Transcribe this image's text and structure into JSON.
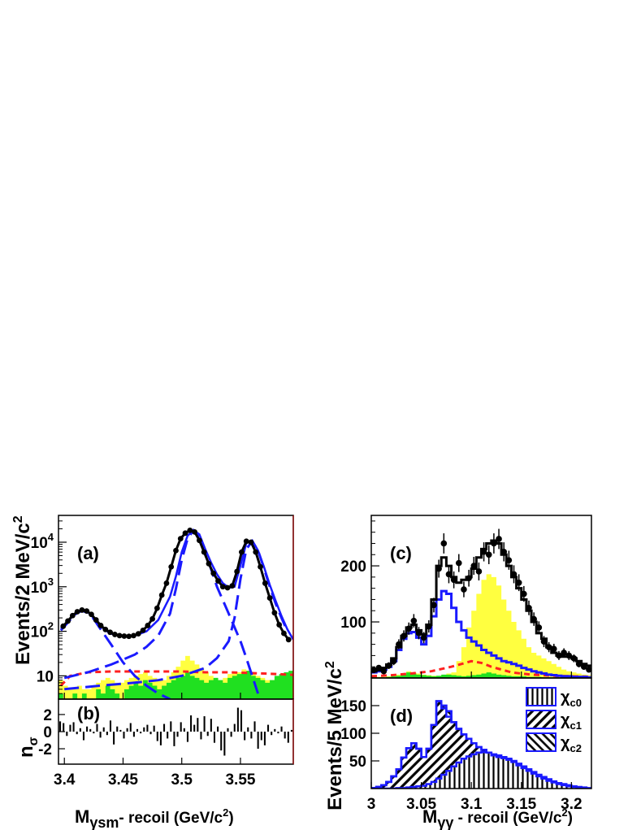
{
  "chart_data": [
    {
      "panel_label": "(a)",
      "type": "line",
      "xlabel": {
        "main": "M",
        "sub": "γsm",
        "rest": "- recoil (GeV/c",
        "sup": "2",
        "end": ")"
      },
      "ylabel": {
        "main": "Events/2 MeV/c",
        "sup": "2"
      },
      "xlim": [
        3.395,
        3.595
      ],
      "ylim": [
        3,
        40000
      ],
      "log_y": true,
      "x_ticks": [
        "3.4",
        "3.45",
        "3.5",
        "3.55"
      ],
      "y_ticks": [
        {
          "value": 10,
          "label": "10",
          "sup": ""
        },
        {
          "value": 100,
          "label": "10",
          "sup": "2"
        },
        {
          "value": 1000,
          "label": "10",
          "sup": "3"
        },
        {
          "value": 10000,
          "label": "10",
          "sup": "4"
        }
      ],
      "colors": {
        "fit": "#1a1aff",
        "component": "#1a1aff",
        "background": "#ff2020",
        "yellow": "#ffff40",
        "green": "#20e020",
        "data": "#000000"
      },
      "series": [
        {
          "role": "total-fit",
          "x": [
            3.397,
            3.405,
            3.41,
            3.415,
            3.42,
            3.425,
            3.43,
            3.435,
            3.44,
            3.45,
            3.46,
            3.47,
            3.48,
            3.49,
            3.495,
            3.5,
            3.505,
            3.51,
            3.515,
            3.52,
            3.525,
            3.53,
            3.535,
            3.54,
            3.545,
            3.55,
            3.555,
            3.56,
            3.565,
            3.57,
            3.575,
            3.58,
            3.585,
            3.59,
            3.595
          ],
          "y": [
            115,
            190,
            260,
            300,
            270,
            200,
            140,
            105,
            88,
            78,
            80,
            100,
            180,
            600,
            1700,
            6000,
            14000,
            18500,
            15000,
            7000,
            3500,
            1900,
            1200,
            950,
            1000,
            3000,
            9500,
            11000,
            6500,
            2800,
            1100,
            480,
            220,
            110,
            65
          ]
        },
        {
          "role": "data",
          "x": [
            3.399,
            3.403,
            3.407,
            3.411,
            3.415,
            3.419,
            3.423,
            3.427,
            3.431,
            3.435,
            3.439,
            3.443,
            3.447,
            3.451,
            3.455,
            3.459,
            3.463,
            3.467,
            3.471,
            3.475,
            3.479,
            3.483,
            3.487,
            3.491,
            3.495,
            3.499,
            3.503,
            3.507,
            3.511,
            3.515,
            3.519,
            3.523,
            3.527,
            3.531,
            3.535,
            3.539,
            3.543,
            3.547,
            3.551,
            3.555,
            3.559,
            3.563,
            3.567,
            3.571,
            3.575,
            3.579,
            3.583,
            3.587,
            3.591
          ],
          "y": [
            130,
            170,
            225,
            275,
            300,
            285,
            240,
            180,
            135,
            110,
            95,
            85,
            80,
            78,
            77,
            80,
            88,
            105,
            135,
            190,
            330,
            650,
            1200,
            2800,
            6500,
            12000,
            16000,
            18500,
            17000,
            11000,
            6000,
            3300,
            2000,
            1350,
            1000,
            950,
            1050,
            2200,
            6000,
            10500,
            10000,
            6000,
            2800,
            1200,
            560,
            260,
            140,
            90,
            65
          ]
        },
        {
          "role": "chi-c0-component",
          "x": [
            3.397,
            3.405,
            3.41,
            3.415,
            3.42,
            3.425,
            3.43,
            3.44,
            3.45,
            3.46,
            3.47,
            3.48,
            3.49
          ],
          "y": [
            105,
            180,
            250,
            290,
            260,
            190,
            120,
            50,
            20,
            10,
            6,
            4,
            3
          ]
        },
        {
          "role": "chi-c1-component",
          "x": [
            3.4,
            3.42,
            3.44,
            3.46,
            3.47,
            3.48,
            3.49,
            3.495,
            3.5,
            3.505,
            3.51,
            3.515,
            3.52,
            3.525,
            3.53,
            3.54,
            3.55,
            3.555,
            3.56,
            3.565
          ],
          "y": [
            9,
            12,
            18,
            30,
            45,
            80,
            250,
            900,
            4000,
            12000,
            18500,
            14000,
            6000,
            2500,
            1000,
            250,
            60,
            25,
            10,
            4
          ]
        },
        {
          "role": "chi-c2-component",
          "x": [
            3.4,
            3.43,
            3.46,
            3.48,
            3.5,
            3.52,
            3.53,
            3.54,
            3.545,
            3.55,
            3.555,
            3.56,
            3.565,
            3.57,
            3.575,
            3.58,
            3.585,
            3.59
          ],
          "y": [
            5,
            6,
            7,
            8,
            10,
            15,
            25,
            60,
            200,
            1500,
            7000,
            10500,
            6500,
            2600,
            1000,
            420,
            200,
            100
          ]
        },
        {
          "role": "background",
          "x": [
            3.397,
            3.405,
            3.42,
            3.44,
            3.46,
            3.48,
            3.5,
            3.52,
            3.54,
            3.56,
            3.58,
            3.595
          ],
          "y": [
            6,
            10,
            12,
            12.5,
            12.5,
            12.5,
            12.5,
            12,
            12,
            11.5,
            11,
            10.5
          ]
        }
      ],
      "yellow_histogram": [
        8,
        6,
        5,
        5,
        6,
        5,
        5,
        6,
        7,
        8,
        9,
        8,
        7,
        7,
        8,
        9,
        10,
        11,
        12,
        10,
        9,
        8,
        8,
        10,
        12,
        16,
        22,
        28,
        22,
        18,
        15,
        12,
        10,
        9,
        8,
        9,
        11,
        12,
        12,
        14,
        13,
        12,
        10,
        9,
        8,
        8,
        9,
        10,
        11,
        11
      ],
      "green_histogram": [
        4,
        3,
        3,
        4,
        3,
        4,
        3,
        3,
        5,
        4,
        6,
        5,
        4,
        3,
        5,
        6,
        7,
        6,
        8,
        7,
        6,
        5,
        6,
        7,
        8,
        9,
        10,
        12,
        10,
        9,
        8,
        7,
        8,
        9,
        8,
        7,
        9,
        10,
        11,
        12,
        13,
        10,
        9,
        8,
        7,
        8,
        10,
        11,
        12,
        13
      ]
    },
    {
      "panel_label": "(b)",
      "type": "bar",
      "ylabel": {
        "main": "n",
        "sub": "σ"
      },
      "xlim": [
        3.395,
        3.595
      ],
      "ylim": [
        -3.8,
        3.8
      ],
      "y_ticks": [
        "-2",
        "0",
        "2"
      ],
      "colors": {
        "bars": "#000000"
      },
      "values": [
        1.2,
        1.0,
        -0.5,
        0.8,
        1.1,
        -0.3,
        0.4,
        -1.0,
        0.6,
        0.3,
        -0.2,
        0.9,
        -0.7,
        0.5,
        -0.4,
        1.3,
        -1.5,
        0.6,
        0.2,
        -0.8,
        0.4,
        1.0,
        -0.6,
        0.3,
        -0.2,
        0.5,
        0.8,
        -0.3,
        0.7,
        -1.1,
        -1.6,
        0.9,
        -0.8,
        1.2,
        -1.7,
        -0.6,
        1.1,
        0.4,
        -1.2,
        1.9,
        0.8,
        1.6,
        -0.9,
        1.8,
        -0.5,
        1.5,
        -1.3,
        0.6,
        -2.2,
        -2.8,
        0.4,
        -0.6,
        0.9,
        2.8,
        2.5,
        -1.0,
        0.5,
        -0.8,
        1.2,
        -2.0,
        -1.0,
        -1.6,
        0.8,
        -0.4,
        0.3,
        -0.2,
        0.6,
        -0.8,
        -1.3,
        0.2
      ]
    },
    {
      "panel_label": "(c)",
      "type": "line",
      "xlim": [
        3.0,
        3.22
      ],
      "ylim": [
        0,
        290
      ],
      "y_ticks": [
        "100",
        "200"
      ],
      "colors": {
        "total": "#000000",
        "chi-c-sum": "#1a1aff",
        "background": "#ff2020",
        "yellow": "#ffff40",
        "green": "#20e020",
        "data": "#000000"
      },
      "bin_edges_start": 3.0,
      "bin_width": 0.005,
      "total_histogram": [
        12,
        14,
        18,
        24,
        35,
        55,
        75,
        90,
        95,
        85,
        78,
        95,
        140,
        200,
        215,
        200,
        180,
        170,
        175,
        180,
        195,
        215,
        230,
        240,
        245,
        240,
        220,
        200,
        180,
        160,
        140,
        120,
        100,
        80,
        70,
        55,
        45,
        40,
        38,
        38,
        35,
        30,
        25,
        22
      ],
      "chi_sum_histogram": [
        10,
        12,
        15,
        20,
        30,
        50,
        70,
        80,
        82,
        72,
        60,
        75,
        110,
        140,
        155,
        150,
        125,
        100,
        85,
        72,
        65,
        58,
        50,
        45,
        40,
        35,
        30,
        28,
        25,
        22,
        18,
        15,
        12,
        10,
        8,
        6,
        5,
        4,
        3,
        3,
        2,
        2,
        2,
        1
      ],
      "yellow_histogram": [
        2,
        2,
        2,
        3,
        4,
        6,
        8,
        12,
        10,
        8,
        6,
        5,
        4,
        3,
        5,
        8,
        10,
        30,
        55,
        90,
        120,
        150,
        175,
        185,
        180,
        165,
        140,
        120,
        100,
        85,
        70,
        55,
        45,
        40,
        35,
        30,
        25,
        20,
        15,
        12,
        10,
        8,
        6,
        5
      ],
      "green_histogram": [
        1,
        1,
        1,
        2,
        3,
        4,
        6,
        10,
        8,
        6,
        5,
        4,
        3,
        4,
        6,
        6,
        5,
        4,
        3,
        4,
        5,
        6,
        8,
        10,
        8,
        6,
        5,
        4,
        3,
        3,
        3,
        2,
        2,
        2,
        1,
        1,
        1,
        1,
        1,
        1,
        1,
        1,
        1,
        1
      ],
      "background_curve": {
        "x": [
          3.0,
          3.02,
          3.04,
          3.06,
          3.08,
          3.09,
          3.1,
          3.11,
          3.12,
          3.14,
          3.16,
          3.18,
          3.2,
          3.22
        ],
        "y": [
          3,
          5,
          8,
          12,
          20,
          25,
          30,
          27,
          20,
          10,
          6,
          4,
          3,
          2
        ]
      },
      "data": {
        "x": [
          3.0025,
          3.0075,
          3.0125,
          3.0175,
          3.0225,
          3.0275,
          3.0325,
          3.0375,
          3.0425,
          3.0475,
          3.0525,
          3.0575,
          3.0625,
          3.0675,
          3.0725,
          3.0775,
          3.0825,
          3.0875,
          3.0925,
          3.0975,
          3.1025,
          3.1075,
          3.1125,
          3.1175,
          3.1225,
          3.1275,
          3.1325,
          3.1375,
          3.1425,
          3.1475,
          3.1525,
          3.1575,
          3.1625,
          3.1675,
          3.1725,
          3.1775,
          3.1825,
          3.1875,
          3.1925,
          3.1975,
          3.2025,
          3.2075,
          3.2125,
          3.2175
        ],
        "y": [
          14,
          18,
          12,
          22,
          30,
          60,
          75,
          88,
          102,
          80,
          72,
          92,
          130,
          195,
          240,
          185,
          175,
          205,
          158,
          178,
          200,
          190,
          225,
          220,
          240,
          248,
          225,
          210,
          185,
          170,
          150,
          125,
          105,
          90,
          65,
          55,
          52,
          40,
          45,
          40,
          35,
          25,
          20,
          15
        ],
        "err": [
          5,
          5,
          5,
          6,
          7,
          9,
          10,
          11,
          12,
          11,
          10,
          11,
          13,
          16,
          18,
          16,
          15,
          16,
          14,
          15,
          16,
          16,
          17,
          17,
          18,
          18,
          17,
          17,
          16,
          15,
          14,
          13,
          12,
          11,
          10,
          9,
          9,
          8,
          8,
          8,
          7,
          6,
          5,
          5
        ]
      }
    },
    {
      "panel_label": "(d)",
      "type": "area",
      "xlabel": {
        "main": "M",
        "sub": "γγ",
        "rest": " - recoil (GeV/c",
        "sup": "2",
        "end": ")"
      },
      "ylabel": {
        "main": "Events/5 MeV/c",
        "sup": "2"
      },
      "xlim": [
        3.0,
        3.22
      ],
      "ylim": [
        0,
        200
      ],
      "x_ticks": [
        "3",
        "3.05",
        "3.1",
        "3.15",
        "3.2"
      ],
      "y_ticks": [
        "50",
        "100",
        "150"
      ],
      "legend": [
        "χc0",
        "χc1",
        "χc2"
      ],
      "legend_items": [
        {
          "main": "χ",
          "sub": "c0"
        },
        {
          "main": "χ",
          "sub": "c1"
        },
        {
          "main": "χ",
          "sub": "c2"
        }
      ],
      "legend_position": "top-right",
      "colors": {
        "outline": "#1a1aff",
        "hatch": "#000000"
      },
      "bin_edges_start": 3.0,
      "bin_width": 0.005,
      "stack_c2_top": [
        1,
        3,
        6,
        12,
        22,
        35,
        55,
        72,
        80,
        70,
        55,
        68,
        100,
        135,
        150,
        140,
        118,
        95,
        78,
        66,
        60,
        55,
        48,
        42,
        38,
        33,
        28,
        25,
        22,
        19,
        16,
        13,
        11,
        9,
        7,
        5,
        4,
        3,
        2,
        1,
        1,
        1,
        1,
        0
      ],
      "stack_c1_top": [
        1,
        3,
        6,
        12,
        22,
        35,
        56,
        73,
        82,
        72,
        57,
        72,
        115,
        158,
        145,
        130,
        120,
        108,
        98,
        90,
        82,
        75,
        70,
        65,
        60,
        57,
        55,
        52,
        48,
        42,
        37,
        32,
        27,
        22,
        18,
        14,
        11,
        8,
        6,
        4,
        3,
        2,
        1,
        0
      ],
      "stack_c0_top": [
        0,
        0,
        0,
        0,
        0,
        1,
        1,
        2,
        3,
        4,
        5,
        8,
        12,
        18,
        25,
        32,
        40,
        47,
        54,
        58,
        62,
        65,
        66,
        65,
        62,
        60,
        57,
        54,
        50,
        45,
        40,
        35,
        30,
        25,
        21,
        17,
        13,
        10,
        8,
        6,
        4,
        3,
        2,
        1
      ]
    }
  ]
}
